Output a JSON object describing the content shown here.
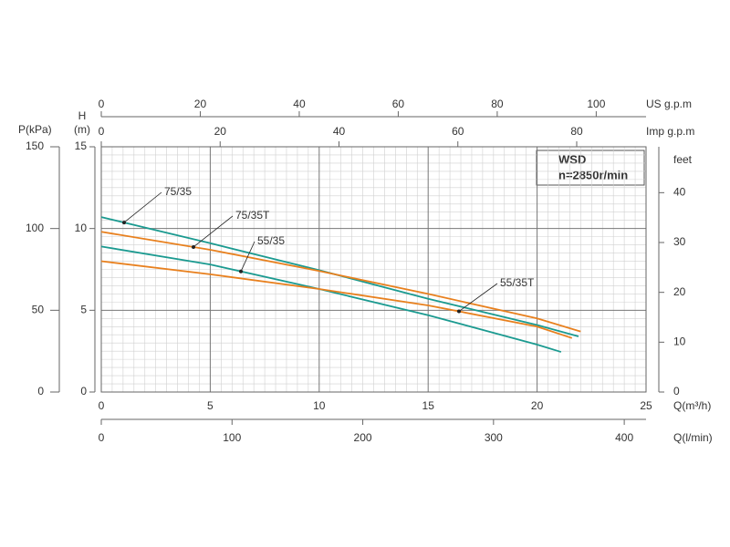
{
  "chart_data": {
    "type": "line",
    "annotations": [
      "WSD",
      "n=2850r/min"
    ],
    "xlabel": "Q(m³/h)",
    "ylabel": [
      "H",
      "(m)"
    ],
    "xlim": [
      0,
      25
    ],
    "xticks": [
      0,
      5,
      10,
      15,
      20,
      25
    ],
    "ylim": [
      0,
      15
    ],
    "yticks": [
      0,
      5,
      10,
      15
    ],
    "grid": true,
    "extra_axes": [
      {
        "label": "P(kPa)",
        "position": "left",
        "lim": [
          0,
          150
        ],
        "ticks": [
          0,
          50,
          100,
          150
        ]
      },
      {
        "label": "feet",
        "position": "right",
        "lim": [
          0,
          49.21
        ],
        "ticks": [
          0,
          10,
          20,
          30,
          40
        ]
      },
      {
        "label": "US g.p.m",
        "position": "top",
        "lim": [
          0,
          110.07
        ],
        "ticks": [
          0,
          20,
          40,
          60,
          80,
          100
        ]
      },
      {
        "label": "Imp g.p.m",
        "position": "top",
        "lim": [
          0,
          91.67
        ],
        "ticks": [
          0,
          20,
          40,
          60,
          80
        ]
      },
      {
        "label": "Q(l/min)",
        "position": "bottom",
        "lim": [
          0,
          416.67
        ],
        "ticks": [
          0,
          100,
          200,
          300,
          400
        ]
      }
    ],
    "series": [
      {
        "name": "75/35",
        "color": "#1b9a90",
        "x": [
          0,
          5,
          10,
          15,
          20,
          21.9
        ],
        "values": [
          10.7,
          9.1,
          7.45,
          5.7,
          4.1,
          3.4
        ]
      },
      {
        "name": "75/35T",
        "color": "#e8801e",
        "x": [
          0,
          5,
          10,
          15,
          20,
          22
        ],
        "values": [
          9.8,
          8.7,
          7.4,
          6.0,
          4.5,
          3.7
        ]
      },
      {
        "name": "55/35",
        "color": "#1b9a90",
        "x": [
          0,
          5,
          10,
          15,
          20,
          21.1
        ],
        "values": [
          8.9,
          7.8,
          6.3,
          4.7,
          2.9,
          2.45
        ]
      },
      {
        "name": "55/35T",
        "color": "#e8801e",
        "x": [
          0,
          5,
          10,
          15,
          20,
          21.6
        ],
        "values": [
          8.0,
          7.2,
          6.3,
          5.3,
          4.0,
          3.3
        ]
      }
    ]
  }
}
